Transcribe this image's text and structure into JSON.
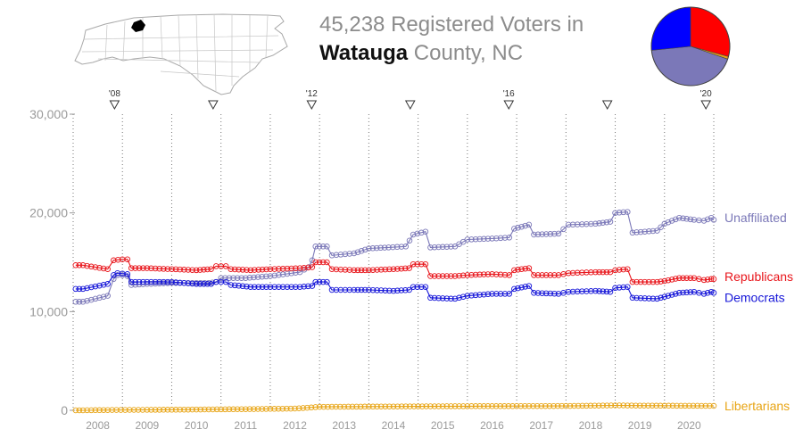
{
  "header": {
    "count": "45,238",
    "title_rest": "Registered Voters in",
    "county": "Watauga",
    "county_rest": "County, NC"
  },
  "colors": {
    "unaffiliated": "#7b78b8",
    "republicans": "#e8151b",
    "democrats": "#1515d8",
    "libertarians": "#e8a516",
    "axis_text": "#9a9a9a",
    "grid": "#777777"
  },
  "pie": {
    "slices": [
      {
        "name": "Republicans",
        "value": 13200,
        "color": "#ff0000"
      },
      {
        "name": "Libertarians",
        "value": 500,
        "color": "#e8a516"
      },
      {
        "name": "Unaffiliated",
        "value": 19500,
        "color": "#7b78b8"
      },
      {
        "name": "Democrats",
        "value": 12038,
        "color": "#0000ff"
      }
    ]
  },
  "election_markers": [
    {
      "x": 2008.84,
      "label": "'08"
    },
    {
      "x": 2010.84,
      "label": ""
    },
    {
      "x": 2012.84,
      "label": "'12"
    },
    {
      "x": 2014.84,
      "label": ""
    },
    {
      "x": 2016.84,
      "label": "'16"
    },
    {
      "x": 2018.84,
      "label": ""
    },
    {
      "x": 2020.84,
      "label": "'20"
    }
  ],
  "chart_data": {
    "type": "line",
    "title": "45,238 Registered Voters in Watauga County, NC",
    "xlim": [
      2008.0,
      2021.0
    ],
    "ylim": [
      0,
      30000
    ],
    "y_ticks": [
      0,
      10000,
      20000,
      30000
    ],
    "y_tick_labels": [
      "0",
      "10,000",
      "20,000",
      "30,000"
    ],
    "x_ticks": [
      2008,
      2009,
      2010,
      2011,
      2012,
      2013,
      2014,
      2015,
      2016,
      2017,
      2018,
      2019,
      2020
    ],
    "x_tick_labels": [
      "2008",
      "2009",
      "2010",
      "2011",
      "2012",
      "2013",
      "2014",
      "2015",
      "2016",
      "2017",
      "2018",
      "2019",
      "2020"
    ],
    "grid": "vertical dotted",
    "series": [
      {
        "name": "Unaffiliated",
        "color": "#7b78b8",
        "points": [
          [
            2008.05,
            11000
          ],
          [
            2008.2,
            11000
          ],
          [
            2008.7,
            11600
          ],
          [
            2008.82,
            13300
          ],
          [
            2008.9,
            13700
          ],
          [
            2009.0,
            13700
          ],
          [
            2009.1,
            13600
          ],
          [
            2009.18,
            12700
          ],
          [
            2009.5,
            12800
          ],
          [
            2010.0,
            12900
          ],
          [
            2010.5,
            12900
          ],
          [
            2010.75,
            12900
          ],
          [
            2010.9,
            13000
          ],
          [
            2011.0,
            13400
          ],
          [
            2011.5,
            13400
          ],
          [
            2012.0,
            13600
          ],
          [
            2012.6,
            14000
          ],
          [
            2012.78,
            14500
          ],
          [
            2012.85,
            15200
          ],
          [
            2012.92,
            16600
          ],
          [
            2013.15,
            16600
          ],
          [
            2013.25,
            15700
          ],
          [
            2013.7,
            15900
          ],
          [
            2014.0,
            16400
          ],
          [
            2014.4,
            16500
          ],
          [
            2014.75,
            16600
          ],
          [
            2014.9,
            17800
          ],
          [
            2015.15,
            18100
          ],
          [
            2015.25,
            16500
          ],
          [
            2015.75,
            16600
          ],
          [
            2016.0,
            17300
          ],
          [
            2016.5,
            17400
          ],
          [
            2016.85,
            17500
          ],
          [
            2016.95,
            18400
          ],
          [
            2017.25,
            18800
          ],
          [
            2017.35,
            17800
          ],
          [
            2017.85,
            17900
          ],
          [
            2018.05,
            18800
          ],
          [
            2018.6,
            18900
          ],
          [
            2018.9,
            19100
          ],
          [
            2019.0,
            20000
          ],
          [
            2019.25,
            20100
          ],
          [
            2019.35,
            18000
          ],
          [
            2019.85,
            18200
          ],
          [
            2020.0,
            18900
          ],
          [
            2020.3,
            19500
          ],
          [
            2020.6,
            19300
          ],
          [
            2020.8,
            19200
          ],
          [
            2020.95,
            19500
          ],
          [
            2021.0,
            19300
          ]
        ]
      },
      {
        "name": "Republicans",
        "color": "#e8151b",
        "points": [
          [
            2008.05,
            14700
          ],
          [
            2008.2,
            14700
          ],
          [
            2008.7,
            14300
          ],
          [
            2008.82,
            15200
          ],
          [
            2009.0,
            15300
          ],
          [
            2009.1,
            15300
          ],
          [
            2009.18,
            14400
          ],
          [
            2009.5,
            14400
          ],
          [
            2010.0,
            14300
          ],
          [
            2010.5,
            14200
          ],
          [
            2010.8,
            14300
          ],
          [
            2010.9,
            14600
          ],
          [
            2011.1,
            14600
          ],
          [
            2011.2,
            14300
          ],
          [
            2011.6,
            14200
          ],
          [
            2012.0,
            14300
          ],
          [
            2012.6,
            14400
          ],
          [
            2012.85,
            14500
          ],
          [
            2012.92,
            15000
          ],
          [
            2013.15,
            15000
          ],
          [
            2013.25,
            14300
          ],
          [
            2013.7,
            14200
          ],
          [
            2014.0,
            14200
          ],
          [
            2014.5,
            14300
          ],
          [
            2014.82,
            14400
          ],
          [
            2014.9,
            14800
          ],
          [
            2015.15,
            14800
          ],
          [
            2015.25,
            13600
          ],
          [
            2015.75,
            13600
          ],
          [
            2016.0,
            13700
          ],
          [
            2016.5,
            13800
          ],
          [
            2016.85,
            13700
          ],
          [
            2016.95,
            14200
          ],
          [
            2017.25,
            14400
          ],
          [
            2017.35,
            13700
          ],
          [
            2017.85,
            13700
          ],
          [
            2018.05,
            13900
          ],
          [
            2018.6,
            14000
          ],
          [
            2018.9,
            14000
          ],
          [
            2019.0,
            14200
          ],
          [
            2019.25,
            14300
          ],
          [
            2019.35,
            13000
          ],
          [
            2019.85,
            13000
          ],
          [
            2020.0,
            13100
          ],
          [
            2020.3,
            13400
          ],
          [
            2020.6,
            13400
          ],
          [
            2020.8,
            13200
          ],
          [
            2020.95,
            13300
          ],
          [
            2021.0,
            13300
          ]
        ]
      },
      {
        "name": "Democrats",
        "color": "#1515d8",
        "points": [
          [
            2008.05,
            12300
          ],
          [
            2008.2,
            12300
          ],
          [
            2008.7,
            12800
          ],
          [
            2008.82,
            13700
          ],
          [
            2008.9,
            13900
          ],
          [
            2009.1,
            13800
          ],
          [
            2009.18,
            13000
          ],
          [
            2009.5,
            13000
          ],
          [
            2010.0,
            13000
          ],
          [
            2010.5,
            12800
          ],
          [
            2010.8,
            12800
          ],
          [
            2010.9,
            13000
          ],
          [
            2011.1,
            13000
          ],
          [
            2011.2,
            12700
          ],
          [
            2011.6,
            12500
          ],
          [
            2012.0,
            12500
          ],
          [
            2012.6,
            12500
          ],
          [
            2012.85,
            12600
          ],
          [
            2012.92,
            13000
          ],
          [
            2013.15,
            13000
          ],
          [
            2013.25,
            12200
          ],
          [
            2013.7,
            12200
          ],
          [
            2014.0,
            12200
          ],
          [
            2014.5,
            12100
          ],
          [
            2014.82,
            12200
          ],
          [
            2014.9,
            12500
          ],
          [
            2015.15,
            12500
          ],
          [
            2015.25,
            11400
          ],
          [
            2015.75,
            11300
          ],
          [
            2016.0,
            11600
          ],
          [
            2016.5,
            11800
          ],
          [
            2016.85,
            11800
          ],
          [
            2016.95,
            12300
          ],
          [
            2017.25,
            12600
          ],
          [
            2017.35,
            11900
          ],
          [
            2017.85,
            11800
          ],
          [
            2018.05,
            12000
          ],
          [
            2018.6,
            12100
          ],
          [
            2018.9,
            12000
          ],
          [
            2019.0,
            12400
          ],
          [
            2019.25,
            12500
          ],
          [
            2019.35,
            11400
          ],
          [
            2019.85,
            11300
          ],
          [
            2020.0,
            11500
          ],
          [
            2020.3,
            11900
          ],
          [
            2020.6,
            12000
          ],
          [
            2020.8,
            11800
          ],
          [
            2020.95,
            12000
          ],
          [
            2021.0,
            11900
          ]
        ]
      },
      {
        "name": "Libertarians",
        "color": "#e8a516",
        "points": [
          [
            2008.05,
            0
          ],
          [
            2008.2,
            0
          ],
          [
            2008.7,
            30
          ],
          [
            2009.5,
            50
          ],
          [
            2010.5,
            80
          ],
          [
            2011.5,
            120
          ],
          [
            2012.5,
            180
          ],
          [
            2013.0,
            350
          ],
          [
            2014.0,
            380
          ],
          [
            2015.0,
            400
          ],
          [
            2016.0,
            420
          ],
          [
            2017.0,
            430
          ],
          [
            2018.0,
            440
          ],
          [
            2019.0,
            500
          ],
          [
            2019.5,
            480
          ],
          [
            2020.5,
            460
          ],
          [
            2021.0,
            450
          ]
        ]
      }
    ],
    "legend_position": "right-of-lines"
  }
}
